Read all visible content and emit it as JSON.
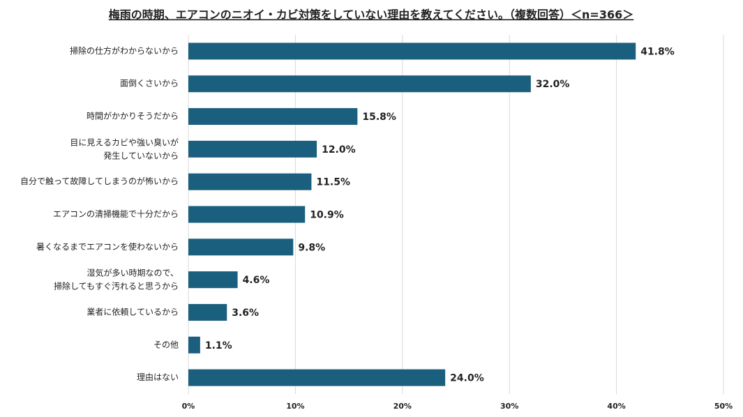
{
  "chart_data": {
    "type": "bar",
    "orientation": "horizontal",
    "title": "梅雨の時期、エアコンのニオイ・カビ対策をしていない理由を教えてください。（複数回答）＜n=366＞",
    "categories": [
      "掃除の仕方がわからないから",
      "面倒くさいから",
      "時間がかかりそうだから",
      "目に見えるカビや強い臭いが\n発生していないから",
      "自分で触って故障してしまうのが怖いから",
      "エアコンの清掃機能で十分だから",
      "暑くなるまでエアコンを使わないから",
      "湿気が多い時期なので、\n掃除してもすぐ汚れると思うから",
      "業者に依頼しているから",
      "その他",
      "理由はない"
    ],
    "values": [
      41.8,
      32.0,
      15.8,
      12.0,
      11.5,
      10.9,
      9.8,
      4.6,
      3.6,
      1.1,
      24.0
    ],
    "value_labels": [
      "41.8%",
      "32.0%",
      "15.8%",
      "12.0%",
      "11.5%",
      "10.9%",
      "9.8%",
      "4.6%",
      "3.6%",
      "1.1%",
      "24.0%"
    ],
    "color": "#1b5f7e",
    "xlim": [
      0,
      50
    ],
    "xticks": [
      {
        "value": 0,
        "label": "0%"
      },
      {
        "value": 10,
        "label": "10%"
      },
      {
        "value": 20,
        "label": "20%"
      },
      {
        "value": 30,
        "label": "30%"
      },
      {
        "value": 40,
        "label": "40%"
      },
      {
        "value": 50,
        "label": "50%"
      }
    ],
    "grid": true
  }
}
